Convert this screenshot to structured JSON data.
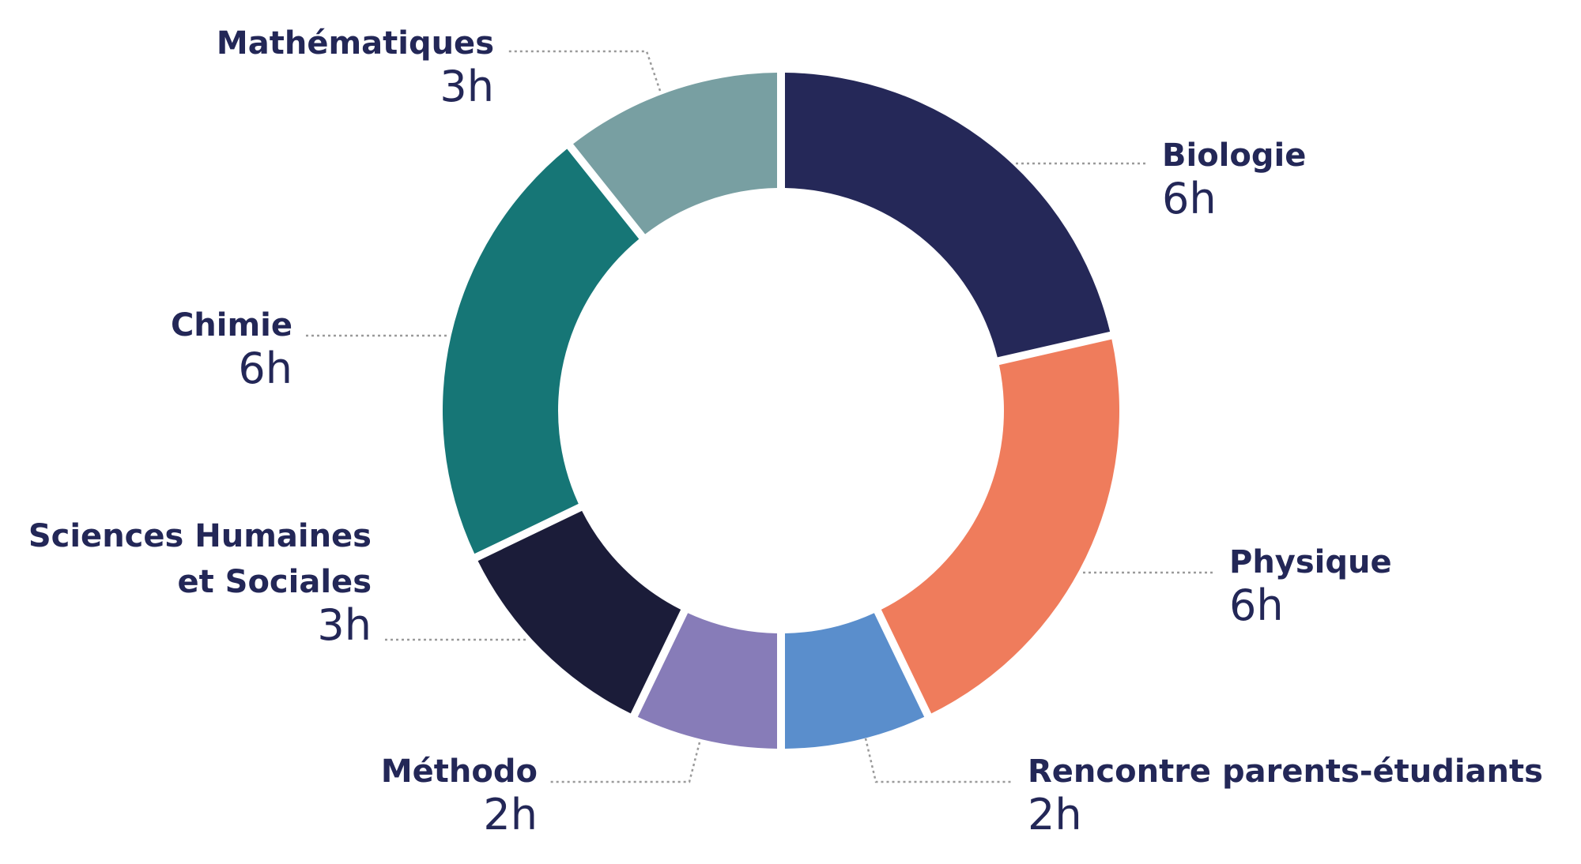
{
  "chart_data": {
    "type": "pie",
    "series": [
      {
        "name": "Biologie",
        "lines": [
          "Biologie"
        ],
        "value": 6,
        "value_label": "6h",
        "color": "#252858"
      },
      {
        "name": "Physique",
        "lines": [
          "Physique"
        ],
        "value": 6,
        "value_label": "6h",
        "color": "#ef7c5c"
      },
      {
        "name": "Rencontre parents-étudiants",
        "lines": [
          "Rencontre parents-étudiants"
        ],
        "value": 2,
        "value_label": "2h",
        "color": "#5a8ecc"
      },
      {
        "name": "Méthodo",
        "lines": [
          "Méthodo"
        ],
        "value": 2,
        "value_label": "2h",
        "color": "#877cb8"
      },
      {
        "name": "Sciences Humaines et Sociales",
        "lines": [
          "Sciences Humaines",
          "et Sociales"
        ],
        "value": 3,
        "value_label": "3h",
        "color": "#1b1c39"
      },
      {
        "name": "Chimie",
        "lines": [
          "Chimie"
        ],
        "value": 6,
        "value_label": "6h",
        "color": "#167676"
      },
      {
        "name": "Mathématiques",
        "lines": [
          "Mathématiques"
        ],
        "value": 3,
        "value_label": "3h",
        "color": "#789fa2"
      }
    ],
    "legend": "none"
  }
}
